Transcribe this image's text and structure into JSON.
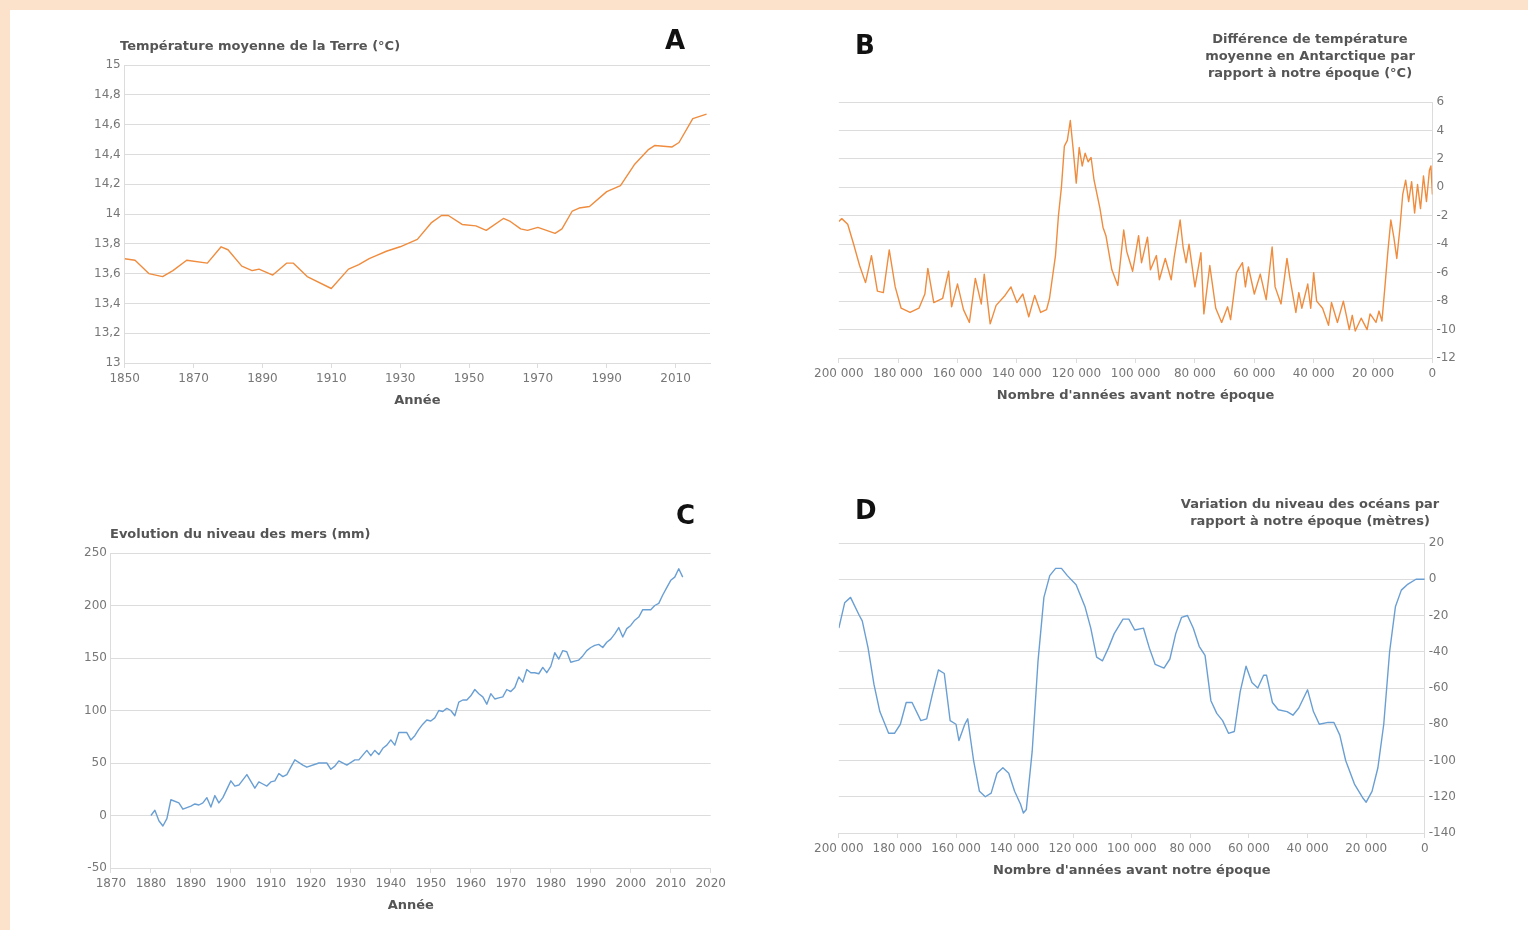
{
  "chart_data": [
    {
      "type": "line",
      "ylabel": "Température moyenne de la Terre (°C)",
      "xlabel": "Année",
      "annotations": [
        "A"
      ],
      "grid": "y",
      "legend": false,
      "xlim": [
        1850,
        2020
      ],
      "xticks": [
        1850,
        1870,
        1890,
        1910,
        1930,
        1950,
        1970,
        1990,
        2010
      ],
      "ylim": [
        13,
        15
      ],
      "yticks": [
        13,
        {
          "value": 13.2,
          "label": "13,2"
        },
        {
          "value": 13.4,
          "label": "13,4"
        },
        {
          "value": 13.6,
          "label": "13,6"
        },
        {
          "value": 13.8,
          "label": "13,8"
        },
        14,
        {
          "value": 14.2,
          "label": "14,2"
        },
        {
          "value": 14.4,
          "label": "14,4"
        },
        {
          "value": 14.6,
          "label": "14,6"
        },
        {
          "value": 14.8,
          "label": "14,8"
        },
        15
      ],
      "series": [
        {
          "color": "#ef8c3e",
          "x": [
            1850,
            1853,
            1857,
            1861,
            1864,
            1868,
            1874,
            1878,
            1880,
            1884,
            1887,
            1889,
            1893,
            1897,
            1899,
            1903,
            1910,
            1915,
            1918,
            1921,
            1926,
            1930,
            1935,
            1939,
            1942,
            1944,
            1948,
            1952,
            1955,
            1960,
            1962,
            1965,
            1967,
            1970,
            1975,
            1977,
            1980,
            1982,
            1985,
            1990,
            1994,
            1998,
            2002,
            2004,
            2009,
            2011,
            2015,
            2019
          ],
          "values": [
            13.7,
            13.69,
            13.6,
            13.58,
            13.62,
            13.69,
            13.67,
            13.78,
            13.76,
            13.65,
            13.62,
            13.63,
            13.59,
            13.67,
            13.67,
            13.58,
            13.5,
            13.63,
            13.66,
            13.7,
            13.75,
            13.78,
            13.83,
            13.94,
            13.99,
            13.99,
            13.93,
            13.92,
            13.89,
            13.97,
            13.95,
            13.9,
            13.89,
            13.91,
            13.87,
            13.9,
            14.02,
            14.04,
            14.05,
            14.15,
            14.19,
            14.33,
            14.43,
            14.46,
            14.45,
            14.48,
            14.64,
            14.67
          ]
        }
      ]
    },
    {
      "type": "line",
      "y2label": "Différence de température moyenne en Antarctique par rapport à notre époque (°C)",
      "xlabel": "Nombre d'années avant notre époque",
      "annotations": [
        "B"
      ],
      "grid": "y",
      "legend": false,
      "xlim": [
        200000,
        0
      ],
      "xticks": [
        {
          "value": 200000,
          "label": "200 000"
        },
        {
          "value": 180000,
          "label": "180 000"
        },
        {
          "value": 160000,
          "label": "160 000"
        },
        {
          "value": 140000,
          "label": "140 000"
        },
        {
          "value": 120000,
          "label": "120 000"
        },
        {
          "value": 100000,
          "label": "100 000"
        },
        {
          "value": 80000,
          "label": "80 000"
        },
        {
          "value": 60000,
          "label": "60 000"
        },
        {
          "value": 40000,
          "label": "40 000"
        },
        {
          "value": 20000,
          "label": "20 000"
        },
        0
      ],
      "y2lim": [
        -12,
        6
      ],
      "y2ticks": [
        -12,
        -10,
        -8,
        -6,
        -4,
        -2,
        0,
        2,
        4,
        6
      ],
      "series": [
        {
          "color": "#ef8c3e",
          "axis": "y2",
          "x": [
            200000,
            199000,
            197000,
            195000,
            193000,
            191000,
            189000,
            187000,
            185000,
            183000,
            181000,
            179000,
            176000,
            173000,
            171000,
            170000,
            168000,
            165000,
            163000,
            162000,
            160000,
            158000,
            156000,
            154000,
            152000,
            151000,
            149000,
            147000,
            144000,
            142000,
            140000,
            138000,
            136000,
            134000,
            132000,
            130000,
            129000,
            127000,
            126000,
            125000,
            124000,
            123000,
            122000,
            121000,
            120000,
            119000,
            118000,
            117000,
            116000,
            115000,
            114000,
            113000,
            112000,
            111000,
            110000,
            108000,
            106000,
            104000,
            103000,
            101000,
            99000,
            98000,
            96000,
            95000,
            93000,
            92000,
            90000,
            88000,
            87000,
            85000,
            84000,
            83000,
            82000,
            80000,
            78000,
            77000,
            75000,
            73000,
            71000,
            69000,
            68000,
            66000,
            64000,
            63000,
            62000,
            60000,
            58000,
            56000,
            54000,
            53000,
            51000,
            49000,
            48000,
            46000,
            45000,
            44000,
            42000,
            41000,
            40000,
            39000,
            37000,
            35000,
            34000,
            32000,
            30000,
            28000,
            27000,
            26000,
            24000,
            22000,
            21000,
            19000,
            18000,
            17000,
            16000,
            15000,
            14000,
            13000,
            12000,
            11000,
            10000,
            9000,
            8000,
            7000,
            6000,
            5000,
            4000,
            3000,
            2000,
            1000,
            500,
            0
          ],
          "values": [
            -2.4,
            -2.2,
            -2.6,
            -4,
            -5.5,
            -6.7,
            -4.8,
            -7.3,
            -7.4,
            -4.4,
            -7,
            -8.5,
            -8.8,
            -8.5,
            -7.5,
            -5.7,
            -8.1,
            -7.8,
            -5.9,
            -8.4,
            -6.8,
            -8.6,
            -9.5,
            -6.4,
            -8.2,
            -6.1,
            -9.6,
            -8.3,
            -7.6,
            -7,
            -8.1,
            -7.5,
            -9.1,
            -7.6,
            -8.8,
            -8.6,
            -7.8,
            -4.8,
            -2,
            0,
            2.9,
            3.3,
            4.7,
            2.6,
            0.3,
            2.8,
            1.5,
            2.4,
            1.8,
            2.1,
            0.5,
            -0.5,
            -1.5,
            -2.8,
            -3.4,
            -5.8,
            -6.9,
            -3,
            -4.5,
            -5.9,
            -3.4,
            -5.3,
            -3.5,
            -5.8,
            -4.8,
            -6.5,
            -5,
            -6.5,
            -4.9,
            -2.3,
            -4.2,
            -5.3,
            -4,
            -7,
            -4.6,
            -8.9,
            -5.5,
            -8.5,
            -9.5,
            -8.4,
            -9.3,
            -6,
            -5.3,
            -7,
            -5.6,
            -7.5,
            -6.1,
            -7.9,
            -4.2,
            -7,
            -8.2,
            -5,
            -6.4,
            -8.8,
            -7.4,
            -8.5,
            -6.8,
            -8.5,
            -6,
            -8,
            -8.5,
            -9.7,
            -8.1,
            -9.5,
            -8,
            -10,
            -9,
            -10.1,
            -9.2,
            -10,
            -8.9,
            -9.5,
            -8.7,
            -9.4,
            -7,
            -4.5,
            -2.3,
            -3.5,
            -5,
            -3,
            -0.5,
            0.5,
            -1,
            0.4,
            -1.8,
            0.2,
            -1.5,
            0.8,
            -1,
            1.2,
            1.5,
            -0.5
          ]
        }
      ]
    },
    {
      "type": "line",
      "ylabel": "Evolution du niveau des mers (mm)",
      "xlabel": "Année",
      "annotations": [
        "C"
      ],
      "grid": "y",
      "legend": false,
      "xlim": [
        1870,
        2020
      ],
      "xticks": [
        1870,
        1880,
        1890,
        1900,
        1910,
        1920,
        1930,
        1940,
        1950,
        1960,
        1970,
        1980,
        1990,
        2000,
        2010,
        2020
      ],
      "ylim": [
        -50,
        250
      ],
      "yticks": [
        -50,
        0,
        50,
        100,
        150,
        200,
        250
      ],
      "series": [
        {
          "color": "#6a9fd3",
          "x": [
            1880,
            1881,
            1882,
            1883,
            1884,
            1885,
            1887,
            1888,
            1890,
            1891,
            1892,
            1893,
            1894,
            1895,
            1896,
            1897,
            1898,
            1900,
            1901,
            1902,
            1904,
            1906,
            1907,
            1908,
            1909,
            1910,
            1911,
            1912,
            1913,
            1914,
            1915,
            1916,
            1918,
            1919,
            1922,
            1924,
            1925,
            1926,
            1927,
            1929,
            1931,
            1932,
            1934,
            1935,
            1936,
            1937,
            1938,
            1939,
            1940,
            1941,
            1942,
            1944,
            1945,
            1946,
            1947,
            1948,
            1949,
            1950,
            1951,
            1952,
            1953,
            1954,
            1955,
            1956,
            1957,
            1958,
            1959,
            1960,
            1961,
            1962,
            1963,
            1964,
            1965,
            1966,
            1967,
            1968,
            1969,
            1970,
            1971,
            1972,
            1973,
            1974,
            1975,
            1976,
            1977,
            1978,
            1979,
            1980,
            1981,
            1982,
            1983,
            1984,
            1985,
            1986,
            1987,
            1988,
            1989,
            1990,
            1991,
            1992,
            1993,
            1994,
            1995,
            1996,
            1997,
            1998,
            1999,
            2000,
            2001,
            2002,
            2003,
            2004,
            2005,
            2006,
            2007,
            2008,
            2009,
            2010,
            2011,
            2012,
            2013
          ],
          "values": [
            0,
            5,
            -5,
            -10,
            -3,
            15,
            12,
            6,
            9,
            11,
            10,
            12,
            17,
            8,
            19,
            12,
            17,
            33,
            28,
            29,
            39,
            26,
            32,
            30,
            28,
            32,
            33,
            40,
            37,
            39,
            46,
            53,
            48,
            46,
            50,
            50,
            44,
            47,
            52,
            48,
            53,
            53,
            62,
            57,
            62,
            58,
            64,
            67,
            72,
            67,
            79,
            79,
            72,
            76,
            82,
            87,
            91,
            90,
            93,
            100,
            99,
            102,
            100,
            95,
            108,
            110,
            110,
            114,
            120,
            116,
            113,
            106,
            116,
            111,
            112,
            113,
            120,
            118,
            122,
            132,
            127,
            139,
            136,
            136,
            135,
            141,
            136,
            142,
            155,
            149,
            157,
            156,
            146,
            147,
            148,
            152,
            157,
            160,
            162,
            163,
            160,
            165,
            168,
            173,
            179,
            170,
            178,
            181,
            186,
            189,
            196,
            196,
            196,
            200,
            202,
            210,
            217,
            224,
            227,
            235,
            227
          ]
        }
      ]
    },
    {
      "type": "line",
      "y2label": "Variation du niveau des océans par rapport à notre époque (mètres)",
      "xlabel": "Nombre d'années avant notre époque",
      "annotations": [
        "D"
      ],
      "grid": "y",
      "legend": false,
      "xlim": [
        200000,
        0
      ],
      "xticks": [
        {
          "value": 200000,
          "label": "200 000"
        },
        {
          "value": 180000,
          "label": "180 000"
        },
        {
          "value": 160000,
          "label": "160 000"
        },
        {
          "value": 140000,
          "label": "140 000"
        },
        {
          "value": 120000,
          "label": "120 000"
        },
        {
          "value": 100000,
          "label": "100 000"
        },
        {
          "value": 80000,
          "label": "80 000"
        },
        {
          "value": 60000,
          "label": "60 000"
        },
        {
          "value": 40000,
          "label": "40 000"
        },
        {
          "value": 20000,
          "label": "20 000"
        },
        0
      ],
      "y2lim": [
        -140,
        20
      ],
      "y2ticks": [
        -140,
        -120,
        -100,
        -80,
        -60,
        -40,
        -20,
        0,
        20
      ],
      "series": [
        {
          "color": "#6a9fd3",
          "axis": "y2",
          "x": [
            200000,
            198000,
            196000,
            193000,
            192000,
            190000,
            188000,
            186000,
            183000,
            181000,
            179000,
            177000,
            175000,
            172000,
            170000,
            168000,
            166000,
            164000,
            162000,
            160000,
            159000,
            157000,
            156000,
            154000,
            152000,
            150000,
            148000,
            146000,
            144000,
            142000,
            140000,
            138000,
            137000,
            136000,
            134000,
            132000,
            130000,
            128000,
            126000,
            124000,
            122000,
            119000,
            116000,
            114000,
            112000,
            110000,
            108000,
            106000,
            103000,
            101000,
            99000,
            96000,
            94000,
            92000,
            89000,
            87000,
            85000,
            83000,
            81000,
            79000,
            77000,
            75000,
            73000,
            71000,
            69000,
            67000,
            65000,
            63000,
            61000,
            59000,
            57000,
            55000,
            54000,
            52000,
            50000,
            47000,
            45000,
            43000,
            40000,
            38000,
            36000,
            33000,
            31000,
            29000,
            27000,
            24000,
            21000,
            20000,
            18000,
            16000,
            14000,
            12000,
            10000,
            8000,
            6000,
            3000,
            0
          ],
          "values": [
            -27,
            -13,
            -10,
            -20,
            -23,
            -38,
            -58,
            -73,
            -85,
            -85,
            -80,
            -68,
            -68,
            -78,
            -77,
            -63,
            -50,
            -52,
            -78,
            -80,
            -89,
            -80,
            -77,
            -100,
            -117,
            -120,
            -118,
            -107,
            -104,
            -107,
            -117,
            -124,
            -129,
            -127,
            -95,
            -45,
            -10,
            2,
            6,
            6,
            2,
            -3,
            -15,
            -27,
            -43,
            -45,
            -38,
            -30,
            -22,
            -22,
            -28,
            -27,
            -38,
            -47,
            -49,
            -44,
            -30,
            -21,
            -20,
            -27,
            -37,
            -42,
            -67,
            -74,
            -78,
            -85,
            -84,
            -62,
            -48,
            -57,
            -60,
            -53,
            -53,
            -68,
            -72,
            -73,
            -75,
            -71,
            -61,
            -73,
            -80,
            -79,
            -79,
            -86,
            -100,
            -113,
            -121,
            -123,
            -117,
            -104,
            -80,
            -40,
            -15,
            -6,
            -3,
            0,
            0
          ]
        }
      ]
    }
  ]
}
